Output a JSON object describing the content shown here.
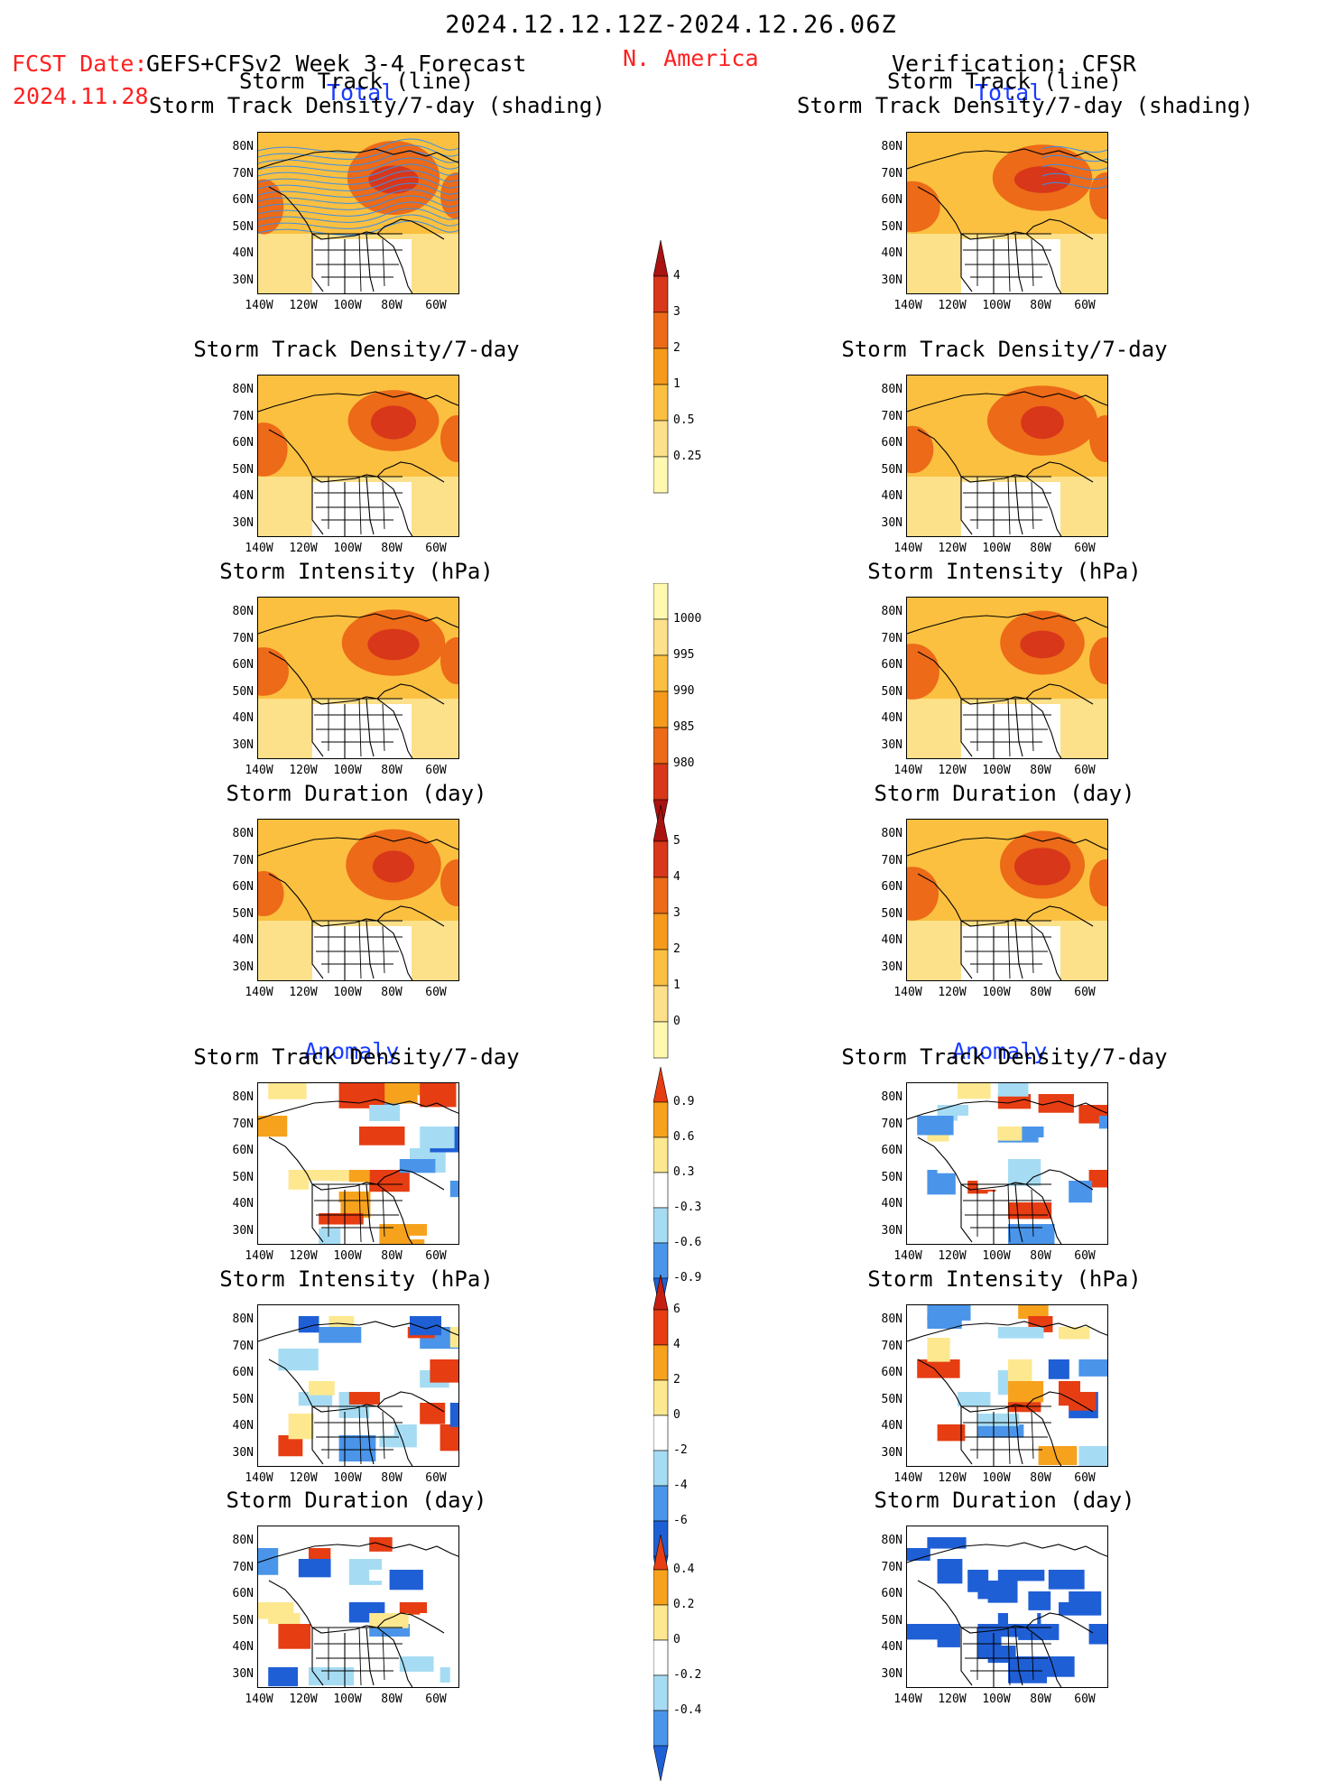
{
  "header": {
    "date_range": "2024.12.12.12Z-2024.12.26.06Z",
    "fcst_date_label": "FCST Date:",
    "forecast_name": "GEFS+CFSv2 Week 3-4 Forecast",
    "fcst_date": "2024.11.28",
    "region": "N. America",
    "verification": "Verification: CFSR"
  },
  "sections": {
    "total": "Total",
    "anomaly": "Anomaly"
  },
  "panel_titles": {
    "track_line_1": "Storm Track (line)",
    "track_line_2": "Storm Track Density/7-day (shading)",
    "density": "Storm Track Density/7-day",
    "intensity": "Storm Intensity (hPa)",
    "duration": "Storm Duration (day)"
  },
  "map_axes": {
    "lat_labels": [
      "80N",
      "70N",
      "60N",
      "50N",
      "40N",
      "30N"
    ],
    "lon_labels": [
      "140W",
      "120W",
      "100W",
      "80W",
      "60W"
    ]
  },
  "colorbars": {
    "density_total": [
      "4",
      "3",
      "2",
      "1",
      "0.5",
      "0.25"
    ],
    "intensity_total": [
      "1000",
      "995",
      "990",
      "985",
      "980"
    ],
    "duration_total": [
      "5",
      "4",
      "3",
      "2",
      "1",
      "0"
    ],
    "density_anom": [
      "0.9",
      "0.6",
      "0.3",
      "-0.3",
      "-0.6",
      "-0.9"
    ],
    "intensity_anom": [
      "6",
      "4",
      "2",
      "0",
      "-2",
      "-4",
      "-6"
    ],
    "duration_anom": [
      "0.4",
      "0.2",
      "0",
      "-0.2",
      "-0.4"
    ]
  },
  "colors": {
    "title_red": "#ff2020",
    "title_blue": "#1a3cff",
    "warm_scale": [
      "#fff8b0",
      "#fde08a",
      "#fbc040",
      "#f59a1a",
      "#ec6a18",
      "#d8371a",
      "#a8120f"
    ],
    "anom_scale": [
      "#1f5fd6",
      "#4a95ea",
      "#a6dcf3",
      "#ffffff",
      "#fde890",
      "#f7a21d",
      "#e63d12"
    ]
  }
}
